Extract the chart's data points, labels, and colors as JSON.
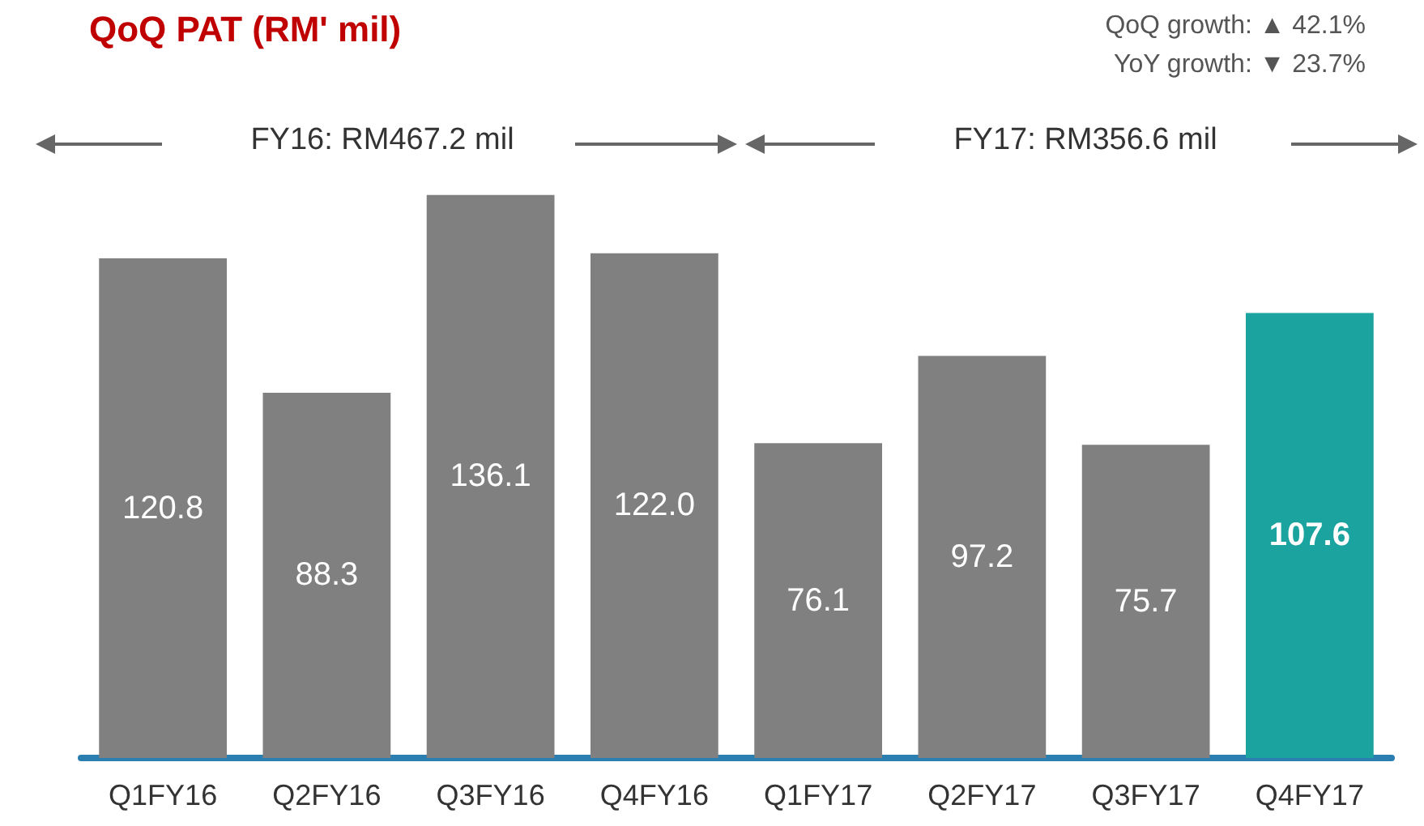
{
  "chart_data": {
    "type": "bar",
    "title": "QoQ PAT (RM' mil)",
    "categories": [
      "Q1FY16",
      "Q2FY16",
      "Q3FY16",
      "Q4FY16",
      "Q1FY17",
      "Q2FY17",
      "Q3FY17",
      "Q4FY17"
    ],
    "values": [
      120.8,
      88.3,
      136.1,
      122.0,
      76.1,
      97.2,
      75.7,
      107.6
    ],
    "colors": [
      "#808080",
      "#808080",
      "#808080",
      "#808080",
      "#808080",
      "#808080",
      "#808080",
      "#1ba39f"
    ],
    "value_labels": [
      "120.8",
      "88.3",
      "136.1",
      "122.0",
      "76.1",
      "97.2",
      "75.7",
      "107.6"
    ],
    "annotations": [
      "QoQ growth: ▲ 42.1%",
      "YoY growth: ▼ 23.7%",
      "FY16: RM467.2 mil",
      "FY17: RM356.6 mil"
    ]
  }
}
